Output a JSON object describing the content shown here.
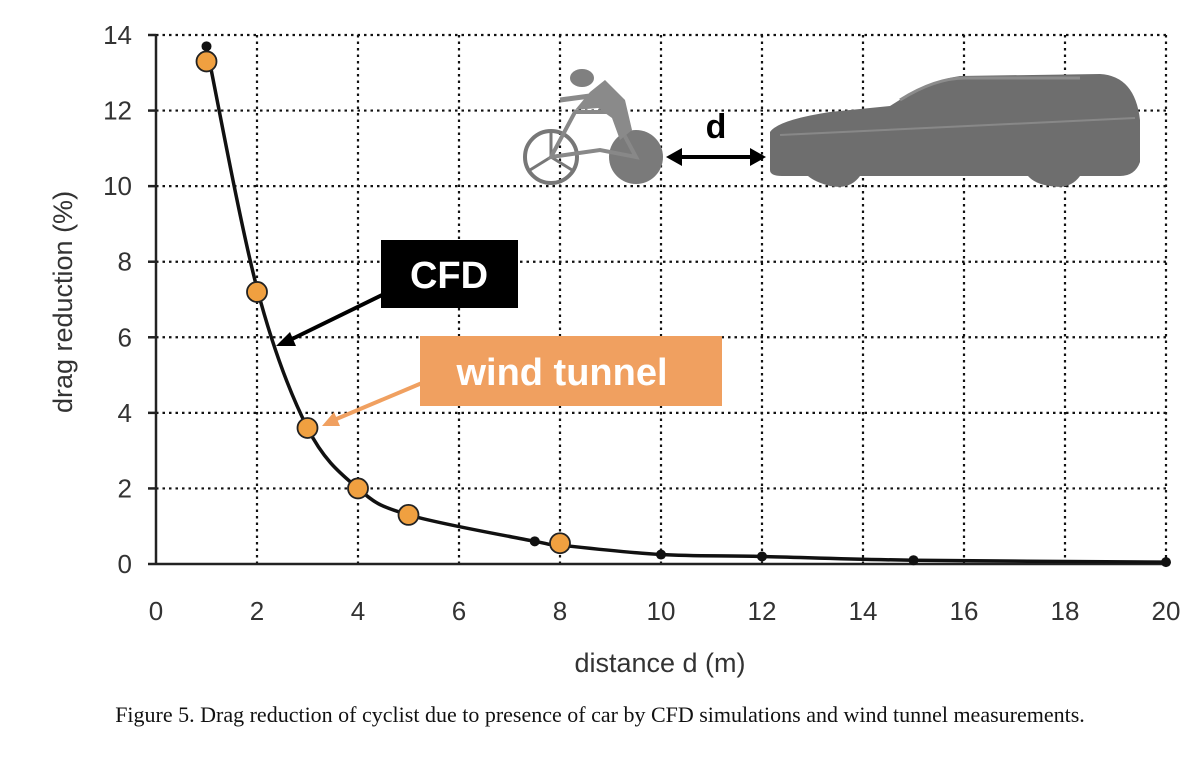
{
  "chart_data": {
    "type": "scatter",
    "xlabel": "distance d (m)",
    "ylabel": "drag reduction (%)",
    "xlim": [
      0,
      20
    ],
    "ylim": [
      0,
      14
    ],
    "xticks": [
      0,
      2,
      4,
      6,
      8,
      10,
      12,
      14,
      16,
      18,
      20
    ],
    "yticks": [
      0,
      2,
      4,
      6,
      8,
      10,
      12,
      14
    ],
    "grid": true,
    "series": [
      {
        "name": "CFD",
        "style": "line-with-points",
        "color": "#111111",
        "x": [
          1,
          2,
          3,
          4,
          5,
          7.5,
          8,
          10,
          12,
          15,
          20
        ],
        "y": [
          13.7,
          7.3,
          3.6,
          2.0,
          1.3,
          0.6,
          0.5,
          0.25,
          0.2,
          0.1,
          0.05
        ]
      },
      {
        "name": "wind tunnel",
        "style": "points",
        "color": "#F0A040",
        "x": [
          1,
          2,
          3,
          4,
          5,
          8
        ],
        "y": [
          13.3,
          7.2,
          3.6,
          2.0,
          1.3,
          0.55
        ]
      }
    ],
    "annotations": [
      {
        "label": "CFD",
        "box_color": "#000000",
        "text_color": "#ffffff"
      },
      {
        "label": "wind tunnel",
        "box_color": "#F0A060",
        "text_color": "#ffffff"
      },
      {
        "label": "d"
      }
    ]
  },
  "caption": "Figure 5. Drag reduction of cyclist due to presence of car by CFD simulations and wind tunnel measurements."
}
